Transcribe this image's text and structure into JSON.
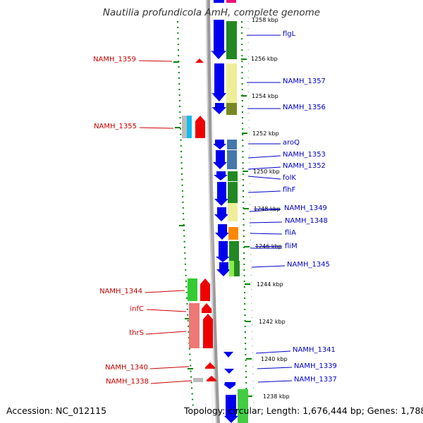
{
  "title": "Nautilia profundicola AmH, complete genome",
  "footer": {
    "accession": "Accession: NC_012115",
    "summary": "Topology: circular; Length: 1,676,444 bp; Genes: 1,788"
  },
  "colors": {
    "forward_arrow": "#0000ee",
    "reverse_arrow": "#ee0000",
    "forward_label": "#0000cc",
    "reverse_label": "#cc0000",
    "tick": "#008800",
    "backbone": "#888888"
  },
  "ruler_labels": [
    "1258 kbp",
    "1256 kbp",
    "1254 kbp",
    "1252 kbp",
    "1250 kbp",
    "1248 kbp",
    "1246 kbp",
    "1244 kbp",
    "1242 kbp",
    "1240 kbp",
    "1238 kbp"
  ],
  "right_labels": [
    "flgL",
    "NAMH_1357",
    "NAMH_1356",
    "aroQ",
    "NAMH_1353",
    "NAMH_1352",
    "folK",
    "flhF",
    "NAMH_1349",
    "NAMH_1348",
    "fliA",
    "fliM",
    "NAMH_1345",
    "NAMH_1341",
    "NAMH_1339",
    "NAMH_1337"
  ],
  "left_labels": [
    "NAMH_1359",
    "NAMH_1355",
    "NAMH_1344",
    "infC",
    "thrS",
    "NAMH_1340",
    "NAMH_1338"
  ]
}
